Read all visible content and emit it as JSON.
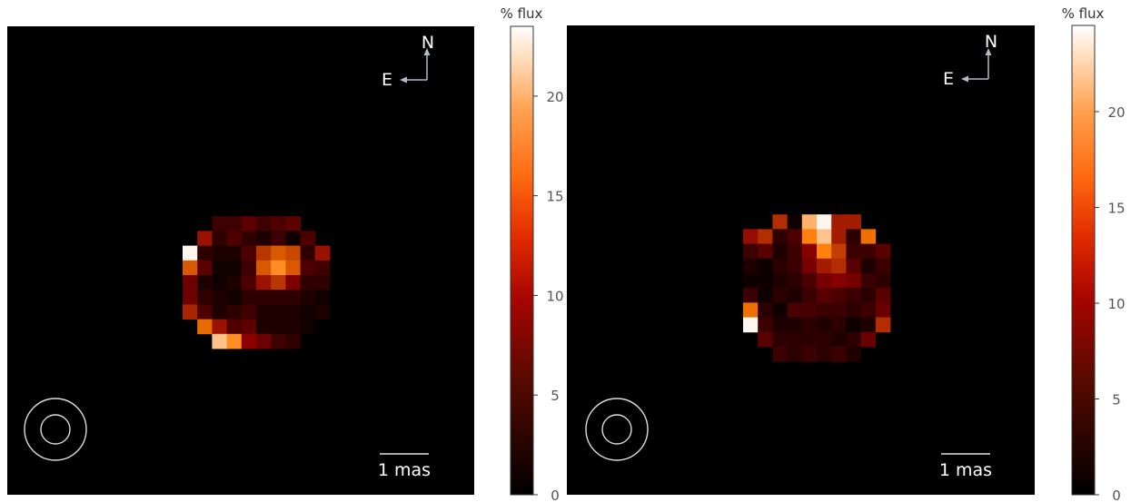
{
  "chart_data": [
    {
      "type": "heatmap",
      "colormap": "gist_heat",
      "grid_rows": 14,
      "grid_cols": 14,
      "pixel_values": [
        [
          0,
          0,
          0,
          0,
          0,
          0,
          0,
          0,
          0,
          0,
          0,
          0,
          0,
          0
        ],
        [
          0,
          0,
          4,
          4,
          6,
          4,
          5,
          6,
          0,
          0,
          0,
          0,
          0,
          0
        ],
        [
          0,
          10,
          3,
          5,
          3,
          2,
          4,
          1,
          5,
          0,
          0,
          0,
          0,
          0
        ],
        [
          23,
          3,
          2,
          2,
          5,
          12,
          14,
          13,
          3,
          10,
          0,
          0,
          0,
          0
        ],
        [
          14,
          6,
          1,
          1,
          4,
          14,
          17,
          14,
          5,
          4,
          0,
          0,
          0,
          0
        ],
        [
          7,
          2,
          1,
          2,
          5,
          10,
          12,
          8,
          3,
          3,
          0,
          0,
          0,
          0
        ],
        [
          7,
          3,
          2,
          1,
          3,
          3,
          3,
          3,
          2,
          1,
          0,
          0,
          0,
          0
        ],
        [
          11,
          5,
          2,
          3,
          4,
          2,
          2,
          2,
          1,
          2,
          0,
          0,
          0,
          0
        ],
        [
          0,
          15,
          10,
          5,
          6,
          2,
          2,
          2,
          1,
          0,
          0,
          0,
          0,
          0
        ],
        [
          0,
          0,
          20,
          17,
          9,
          7,
          4,
          3,
          0,
          0,
          0,
          0,
          0,
          0
        ],
        [
          0,
          0,
          0,
          0,
          0,
          0,
          0,
          0,
          0,
          0,
          0,
          0,
          0,
          0
        ],
        [
          0,
          0,
          0,
          0,
          0,
          0,
          0,
          0,
          0,
          0,
          0,
          0,
          0,
          0
        ],
        [
          0,
          0,
          0,
          0,
          0,
          0,
          0,
          0,
          0,
          0,
          0,
          0,
          0,
          0
        ],
        [
          0,
          0,
          0,
          0,
          0,
          0,
          0,
          0,
          0,
          0,
          0,
          0,
          0,
          0
        ]
      ],
      "colorbar": {
        "label": "% flux",
        "ticks": [
          0,
          5,
          10,
          15,
          20
        ],
        "range": [
          0,
          23.5
        ]
      },
      "compass": {
        "north": "N",
        "east": "E"
      },
      "scale_bar_label": "1 mas",
      "beam_marker": "two-concentric-circles"
    },
    {
      "type": "heatmap",
      "colormap": "gist_heat",
      "grid_rows": 14,
      "grid_cols": 14,
      "pixel_values": [
        [
          0,
          0,
          0,
          0,
          0,
          0,
          0,
          0,
          0,
          0,
          0,
          0,
          0,
          0
        ],
        [
          0,
          0,
          12,
          1,
          20,
          24,
          11,
          11,
          0,
          0,
          0,
          0,
          0,
          0
        ],
        [
          10,
          12,
          3,
          5,
          17,
          21,
          11,
          3,
          16,
          0,
          0,
          0,
          0,
          0
        ],
        [
          4,
          6,
          2,
          4,
          9,
          17,
          13,
          4,
          4,
          6,
          0,
          0,
          0,
          0
        ],
        [
          2,
          1,
          3,
          4,
          8,
          11,
          12,
          6,
          2,
          4,
          0,
          0,
          0,
          0
        ],
        [
          1,
          1,
          2,
          3,
          5,
          8,
          9,
          8,
          4,
          3,
          0,
          0,
          0,
          0
        ],
        [
          4,
          1,
          3,
          2,
          4,
          6,
          5,
          4,
          3,
          6,
          0,
          0,
          0,
          0
        ],
        [
          16,
          3,
          1,
          5,
          5,
          4,
          4,
          3,
          4,
          7,
          0,
          0,
          0,
          0
        ],
        [
          24,
          4,
          2,
          2,
          3,
          2,
          3,
          1,
          2,
          12,
          0,
          0,
          0,
          0
        ],
        [
          0,
          6,
          3,
          3,
          3,
          3,
          2,
          3,
          7,
          0,
          0,
          0,
          0,
          0
        ],
        [
          0,
          0,
          4,
          3,
          4,
          3,
          4,
          2,
          0,
          0,
          0,
          0,
          0,
          0
        ],
        [
          0,
          0,
          0,
          0,
          0,
          0,
          0,
          0,
          0,
          0,
          0,
          0,
          0,
          0
        ],
        [
          0,
          0,
          0,
          0,
          0,
          0,
          0,
          0,
          0,
          0,
          0,
          0,
          0,
          0
        ],
        [
          0,
          0,
          0,
          0,
          0,
          0,
          0,
          0,
          0,
          0,
          0,
          0,
          0,
          0
        ]
      ],
      "colorbar": {
        "label": "% flux",
        "ticks": [
          0,
          5,
          10,
          15,
          20
        ],
        "range": [
          0,
          24.5
        ]
      },
      "compass": {
        "north": "N",
        "east": "E"
      },
      "scale_bar_label": "1 mas",
      "beam_marker": "two-concentric-circles"
    }
  ]
}
